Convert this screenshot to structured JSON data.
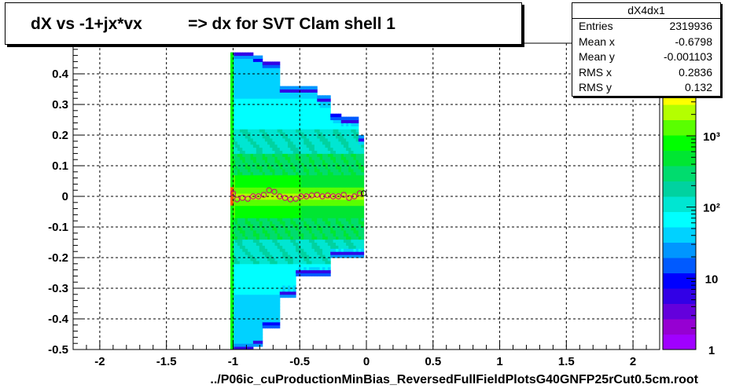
{
  "title": "dX vs -1+jx*vx          => dx for SVT Clam shell 1",
  "stats": {
    "name": "dX4dx1",
    "rows": [
      {
        "key": "Entries",
        "value": "2319936"
      },
      {
        "key": "Mean x",
        "value": "-0.6798"
      },
      {
        "key": "Mean y",
        "value": "-0.001103"
      },
      {
        "key": "RMS x",
        "value": "0.2836"
      },
      {
        "key": "RMS y",
        "value": "0.132"
      }
    ]
  },
  "chart_data": {
    "type": "heatmap",
    "xlabel": "../P06ic_cuProductionMinBias_ReversedFullFieldPlotsG40GNFP25rCut0.5cm.root",
    "ylabel": "",
    "xlim": [
      -2.2,
      2.2
    ],
    "ylim": [
      -0.5,
      0.5
    ],
    "x_ticks": [
      -2,
      -1.5,
      -1,
      -0.5,
      0,
      0.5,
      1,
      1.5,
      2
    ],
    "x_tick_labels": [
      "-2",
      "-1.5",
      "-1",
      "-0.5",
      "0",
      "0.5",
      "1",
      "1.5",
      "2"
    ],
    "y_ticks": [
      -0.5,
      -0.4,
      -0.3,
      -0.2,
      -0.1,
      0,
      0.1,
      0.2,
      0.3,
      0.4
    ],
    "y_tick_labels": [
      "-0.5",
      "-0.4",
      "-0.3",
      "-0.2",
      "-0.1",
      "0",
      "0.1",
      "0.2",
      "0.3",
      "0.4"
    ],
    "grid": true,
    "z_log": true,
    "z_range": [
      1,
      20000
    ],
    "z_ticks": [
      1,
      10,
      100,
      1000
    ],
    "z_tick_labels": [
      "1",
      "10",
      "10²",
      "10³"
    ],
    "envelope": [
      {
        "x0": -1.02,
        "x1": -0.95,
        "ymin": -0.5,
        "ymax": 0.47
      },
      {
        "x0": -0.95,
        "x1": -0.85,
        "ymin": -0.5,
        "ymax": 0.47
      },
      {
        "x0": -0.85,
        "x1": -0.78,
        "ymin": -0.49,
        "ymax": 0.46
      },
      {
        "x0": -0.78,
        "x1": -0.65,
        "ymin": -0.43,
        "ymax": 0.44
      },
      {
        "x0": -0.65,
        "x1": -0.53,
        "ymin": -0.33,
        "ymax": 0.36
      },
      {
        "x0": -0.53,
        "x1": -0.37,
        "ymin": -0.26,
        "ymax": 0.36
      },
      {
        "x0": -0.37,
        "x1": -0.27,
        "ymin": -0.26,
        "ymax": 0.33
      },
      {
        "x0": -0.27,
        "x1": -0.19,
        "ymin": -0.2,
        "ymax": 0.27
      },
      {
        "x0": -0.19,
        "x1": -0.06,
        "ymin": -0.2,
        "ymax": 0.26
      },
      {
        "x0": -0.06,
        "x1": -0.02,
        "ymin": -0.2,
        "ymax": 0.2
      }
    ],
    "profile": {
      "x": [
        -1.0,
        -0.97,
        -0.93,
        -0.89,
        -0.85,
        -0.81,
        -0.77,
        -0.73,
        -0.69,
        -0.65,
        -0.61,
        -0.57,
        -0.53,
        -0.49,
        -0.45,
        -0.41,
        -0.37,
        -0.33,
        -0.29,
        -0.25,
        -0.21,
        -0.17,
        -0.13,
        -0.09,
        -0.05,
        -0.02
      ],
      "y": [
        0.01,
        -0.01,
        -0.005,
        -0.008,
        0.0,
        0.0,
        0.005,
        0.02,
        0.015,
        0.0,
        -0.005,
        -0.01,
        -0.008,
        0.0,
        0.0,
        0.003,
        0.005,
        0.0,
        0.003,
        0.0,
        0.0,
        0.005,
        -0.005,
        0.0,
        0.01,
        0.01
      ]
    }
  },
  "palette": [
    "#ff0000",
    "#ff5a00",
    "#ffb400",
    "#ffff00",
    "#b4ff00",
    "#5aff00",
    "#00ff00",
    "#00e632",
    "#00dc6e",
    "#00d2a0",
    "#00e6d2",
    "#00ffff",
    "#00d2ff",
    "#0096ff",
    "#005aff",
    "#0000ff",
    "#3200e6",
    "#6400dc",
    "#9600d2",
    "#a000ff"
  ]
}
